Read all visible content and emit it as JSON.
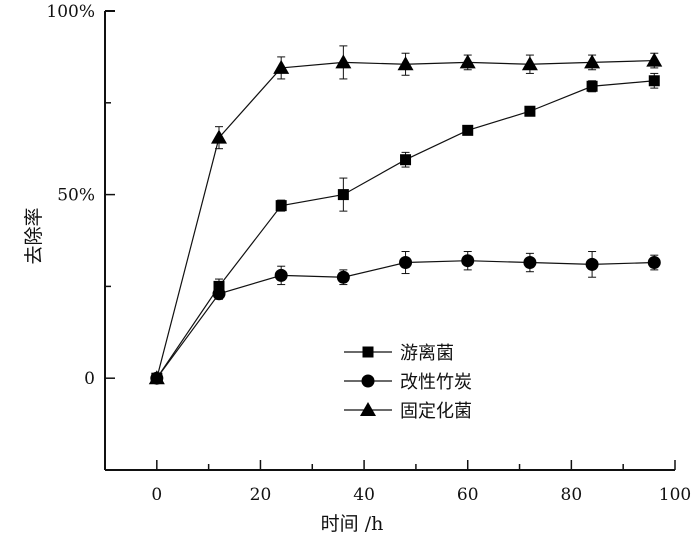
{
  "chart_data": {
    "type": "line",
    "title": "",
    "xlabel": "时间 /h",
    "ylabel": "去除率",
    "xlim": [
      -10,
      100
    ],
    "ylim": [
      -25,
      100
    ],
    "x_ticks": [
      0,
      20,
      40,
      60,
      80,
      100
    ],
    "x_tick_labels": [
      "0",
      "20",
      "40",
      "60",
      "80",
      "100"
    ],
    "y_ticks": [
      0,
      50,
      100
    ],
    "y_tick_labels": [
      "0",
      "50%",
      "100%"
    ],
    "grid": false,
    "legend_position": "center-bottom",
    "x": [
      0,
      12,
      24,
      36,
      48,
      60,
      72,
      84,
      96
    ],
    "series": [
      {
        "name": "游离菌",
        "marker": "square",
        "values": [
          0,
          25,
          47,
          50,
          59.5,
          67.5,
          72.7,
          79.5,
          81
        ],
        "errors": [
          0,
          2,
          1.5,
          4.5,
          2,
          1,
          1,
          1.5,
          2
        ]
      },
      {
        "name": "改性竹炭",
        "marker": "circle",
        "values": [
          0,
          23,
          28,
          27.5,
          31.5,
          32,
          31.5,
          31,
          31.5
        ],
        "errors": [
          0,
          1.5,
          2.5,
          2,
          3,
          2.5,
          2.5,
          3.5,
          2
        ]
      },
      {
        "name": "固定化菌",
        "marker": "triangle",
        "values": [
          0,
          65.5,
          84.5,
          86,
          85.5,
          86,
          85.5,
          86,
          86.5
        ],
        "errors": [
          0,
          3,
          3,
          4.5,
          3,
          2,
          2.5,
          2,
          2
        ]
      }
    ],
    "colors": {
      "line": "#111111",
      "marker": "#000000"
    }
  }
}
